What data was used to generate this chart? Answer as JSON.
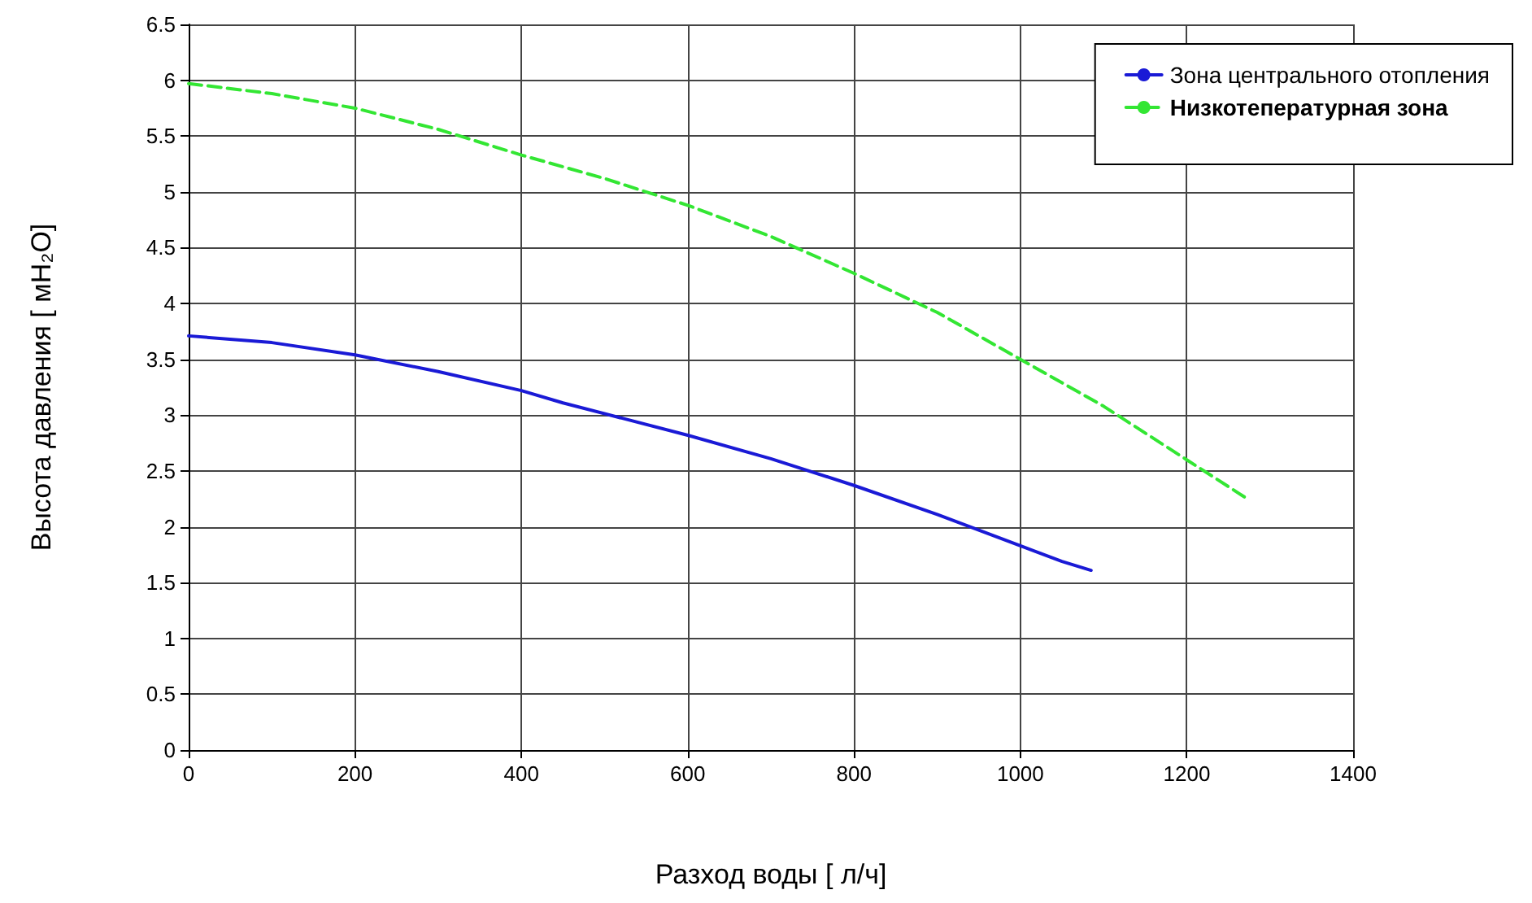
{
  "chart_data": {
    "type": "line",
    "xlabel": "Разход воды [ л/ч]",
    "ylabel": "Высота давления [ мН₂О]",
    "xlim": [
      0,
      1400
    ],
    "xticks": [
      0,
      200,
      400,
      600,
      800,
      1000,
      1200,
      1400
    ],
    "ylim": [
      0,
      6.5
    ],
    "yticks": [
      0,
      0.5,
      1,
      1.5,
      2,
      2.5,
      3,
      3.5,
      4,
      4.5,
      5,
      5.5,
      6,
      6.5
    ],
    "grid": true,
    "legend": "top right",
    "marker": "none",
    "series": [
      {
        "name": "Зона центрального отопления",
        "color": "#1a1ad6",
        "line_style": "solid",
        "x": [
          0,
          100,
          200,
          300,
          400,
          450,
          600,
          700,
          800,
          900,
          1000,
          1050,
          1085
        ],
        "values": [
          3.71,
          3.65,
          3.54,
          3.39,
          3.22,
          3.11,
          2.82,
          2.61,
          2.37,
          2.11,
          1.83,
          1.69,
          1.61
        ]
      },
      {
        "name": "Низкотепературная зона",
        "color": "#33e633",
        "line_style": "dashed",
        "x": [
          0,
          100,
          200,
          300,
          400,
          500,
          600,
          700,
          800,
          900,
          1000,
          1100,
          1200,
          1275
        ],
        "values": [
          5.97,
          5.88,
          5.75,
          5.56,
          5.33,
          5.12,
          4.88,
          4.6,
          4.27,
          3.92,
          3.5,
          3.08,
          2.6,
          2.24
        ]
      }
    ]
  }
}
